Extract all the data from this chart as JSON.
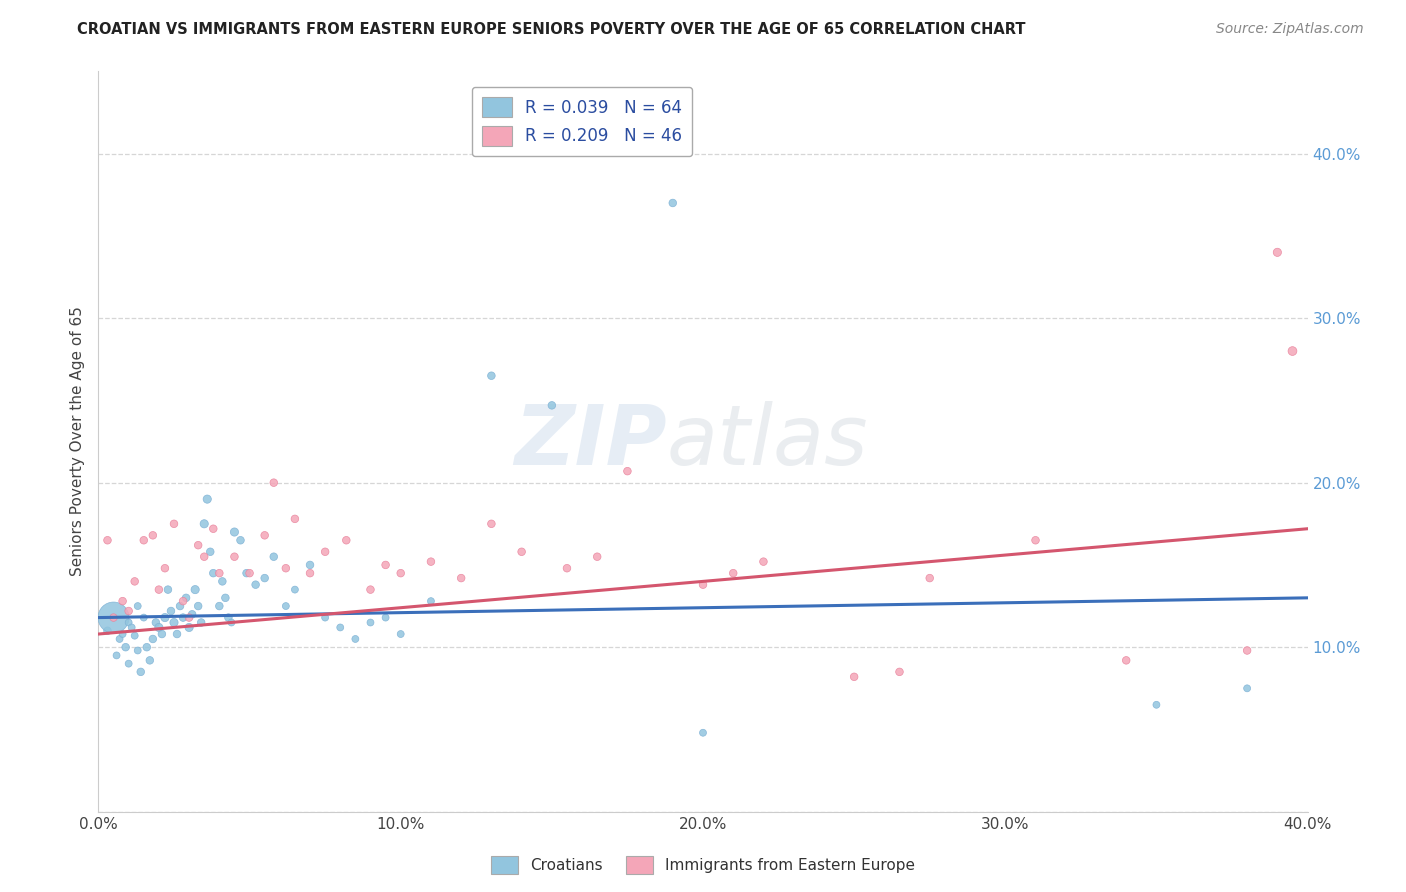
{
  "title": "CROATIAN VS IMMIGRANTS FROM EASTERN EUROPE SENIORS POVERTY OVER THE AGE OF 65 CORRELATION CHART",
  "source": "Source: ZipAtlas.com",
  "ylabel": "Seniors Poverty Over the Age of 65",
  "xlim": [
    0.0,
    0.4
  ],
  "ylim": [
    0.0,
    0.45
  ],
  "watermark_zip": "ZIP",
  "watermark_atlas": "atlas",
  "legend_line1": "R = 0.039   N = 64",
  "legend_line2": "R = 0.209   N = 46",
  "blue_color": "#92c5de",
  "pink_color": "#f4a6b8",
  "blue_fill": "#aec7e8",
  "pink_fill": "#f7c0cf",
  "blue_line_color": "#3b6fba",
  "pink_line_color": "#d4566e",
  "blue_line_y0": 0.118,
  "blue_line_y1": 0.13,
  "pink_line_y0": 0.108,
  "pink_line_y1": 0.172,
  "cr_x": [
    0.003,
    0.005,
    0.006,
    0.007,
    0.008,
    0.009,
    0.01,
    0.01,
    0.011,
    0.012,
    0.013,
    0.013,
    0.014,
    0.015,
    0.016,
    0.017,
    0.018,
    0.019,
    0.02,
    0.021,
    0.022,
    0.023,
    0.024,
    0.025,
    0.026,
    0.027,
    0.028,
    0.029,
    0.03,
    0.031,
    0.032,
    0.033,
    0.034,
    0.035,
    0.036,
    0.037,
    0.038,
    0.04,
    0.041,
    0.042,
    0.043,
    0.044,
    0.045,
    0.047,
    0.049,
    0.052,
    0.055,
    0.058,
    0.062,
    0.065,
    0.07,
    0.075,
    0.08,
    0.085,
    0.09,
    0.095,
    0.1,
    0.11,
    0.13,
    0.15,
    0.19,
    0.2,
    0.35,
    0.38
  ],
  "cr_y": [
    0.11,
    0.118,
    0.095,
    0.105,
    0.108,
    0.1,
    0.115,
    0.09,
    0.112,
    0.107,
    0.098,
    0.125,
    0.085,
    0.118,
    0.1,
    0.092,
    0.105,
    0.115,
    0.112,
    0.108,
    0.118,
    0.135,
    0.122,
    0.115,
    0.108,
    0.125,
    0.118,
    0.13,
    0.112,
    0.12,
    0.135,
    0.125,
    0.115,
    0.175,
    0.19,
    0.158,
    0.145,
    0.125,
    0.14,
    0.13,
    0.118,
    0.115,
    0.17,
    0.165,
    0.145,
    0.138,
    0.142,
    0.155,
    0.125,
    0.135,
    0.15,
    0.118,
    0.112,
    0.105,
    0.115,
    0.118,
    0.108,
    0.128,
    0.265,
    0.247,
    0.37,
    0.048,
    0.065,
    0.075
  ],
  "cr_s": [
    30,
    500,
    25,
    25,
    25,
    30,
    25,
    25,
    25,
    25,
    25,
    25,
    30,
    25,
    30,
    30,
    30,
    30,
    35,
    30,
    35,
    30,
    30,
    35,
    30,
    30,
    30,
    30,
    35,
    30,
    35,
    30,
    30,
    35,
    35,
    30,
    30,
    30,
    30,
    30,
    30,
    25,
    35,
    30,
    30,
    30,
    30,
    30,
    25,
    25,
    30,
    25,
    25,
    25,
    25,
    25,
    25,
    25,
    30,
    30,
    30,
    25,
    25,
    25
  ],
  "ee_x": [
    0.003,
    0.005,
    0.008,
    0.01,
    0.012,
    0.015,
    0.018,
    0.02,
    0.022,
    0.025,
    0.028,
    0.03,
    0.033,
    0.035,
    0.038,
    0.04,
    0.045,
    0.05,
    0.055,
    0.058,
    0.062,
    0.065,
    0.07,
    0.075,
    0.082,
    0.09,
    0.095,
    0.1,
    0.11,
    0.12,
    0.13,
    0.14,
    0.155,
    0.165,
    0.175,
    0.2,
    0.21,
    0.22,
    0.25,
    0.265,
    0.275,
    0.31,
    0.34,
    0.38,
    0.39,
    0.395
  ],
  "ee_y": [
    0.165,
    0.118,
    0.128,
    0.122,
    0.14,
    0.165,
    0.168,
    0.135,
    0.148,
    0.175,
    0.128,
    0.118,
    0.162,
    0.155,
    0.172,
    0.145,
    0.155,
    0.145,
    0.168,
    0.2,
    0.148,
    0.178,
    0.145,
    0.158,
    0.165,
    0.135,
    0.15,
    0.145,
    0.152,
    0.142,
    0.175,
    0.158,
    0.148,
    0.155,
    0.207,
    0.138,
    0.145,
    0.152,
    0.082,
    0.085,
    0.142,
    0.165,
    0.092,
    0.098,
    0.34,
    0.28
  ],
  "ee_s": [
    30,
    30,
    30,
    30,
    30,
    30,
    30,
    30,
    30,
    30,
    30,
    30,
    30,
    30,
    30,
    30,
    30,
    30,
    30,
    30,
    30,
    30,
    30,
    30,
    30,
    30,
    30,
    30,
    30,
    30,
    30,
    30,
    30,
    30,
    30,
    30,
    30,
    30,
    30,
    30,
    30,
    30,
    30,
    30,
    35,
    40
  ]
}
